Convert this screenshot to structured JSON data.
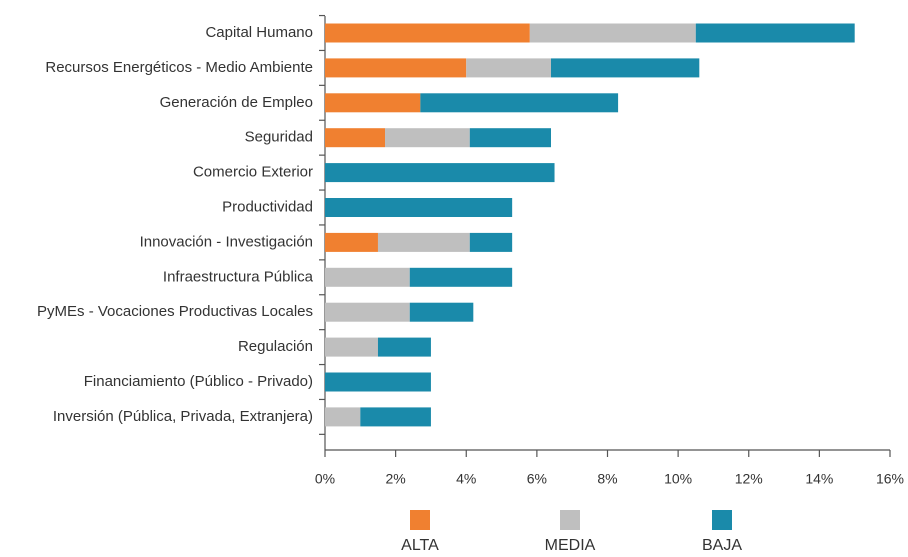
{
  "chart_data": {
    "type": "stacked-bar-horizontal",
    "categories": [
      "Capital Humano",
      "Recursos Energéticos - Medio Ambiente",
      "Generación de Empleo",
      "Seguridad",
      "Comercio Exterior",
      "Productividad",
      "Innovación - Investigación",
      "Infraestructura Pública",
      "PyMEs - Vocaciones Productivas Locales",
      "Regulación",
      "Financiamiento (Público - Privado)",
      "Inversión (Pública, Privada, Extranjera)"
    ],
    "series": [
      {
        "name": "ALTA",
        "color": "#f08030",
        "values": [
          5.8,
          4.0,
          2.7,
          1.7,
          0,
          0,
          1.5,
          0,
          0,
          0,
          0,
          0
        ]
      },
      {
        "name": "MEDIA",
        "color": "#bfbfbf",
        "values": [
          4.7,
          2.4,
          0,
          2.4,
          0,
          0,
          2.6,
          2.4,
          2.4,
          1.5,
          0,
          1.0
        ]
      },
      {
        "name": "BAJA",
        "color": "#1a8aaa",
        "values": [
          4.5,
          4.2,
          5.6,
          2.3,
          6.5,
          5.3,
          1.2,
          2.9,
          1.8,
          1.5,
          3.0,
          2.0
        ]
      }
    ],
    "xlim": [
      0,
      16
    ],
    "xticks": [
      {
        "value": 0,
        "label": "0%"
      },
      {
        "value": 2,
        "label": "2%"
      },
      {
        "value": 4,
        "label": "4%"
      },
      {
        "value": 6,
        "label": "6%"
      },
      {
        "value": 8,
        "label": "8%"
      },
      {
        "value": 10,
        "label": "10%"
      },
      {
        "value": 12,
        "label": "12%"
      },
      {
        "value": 14,
        "label": "14%"
      },
      {
        "value": 16,
        "label": "16%"
      }
    ],
    "legend": "bottom"
  }
}
